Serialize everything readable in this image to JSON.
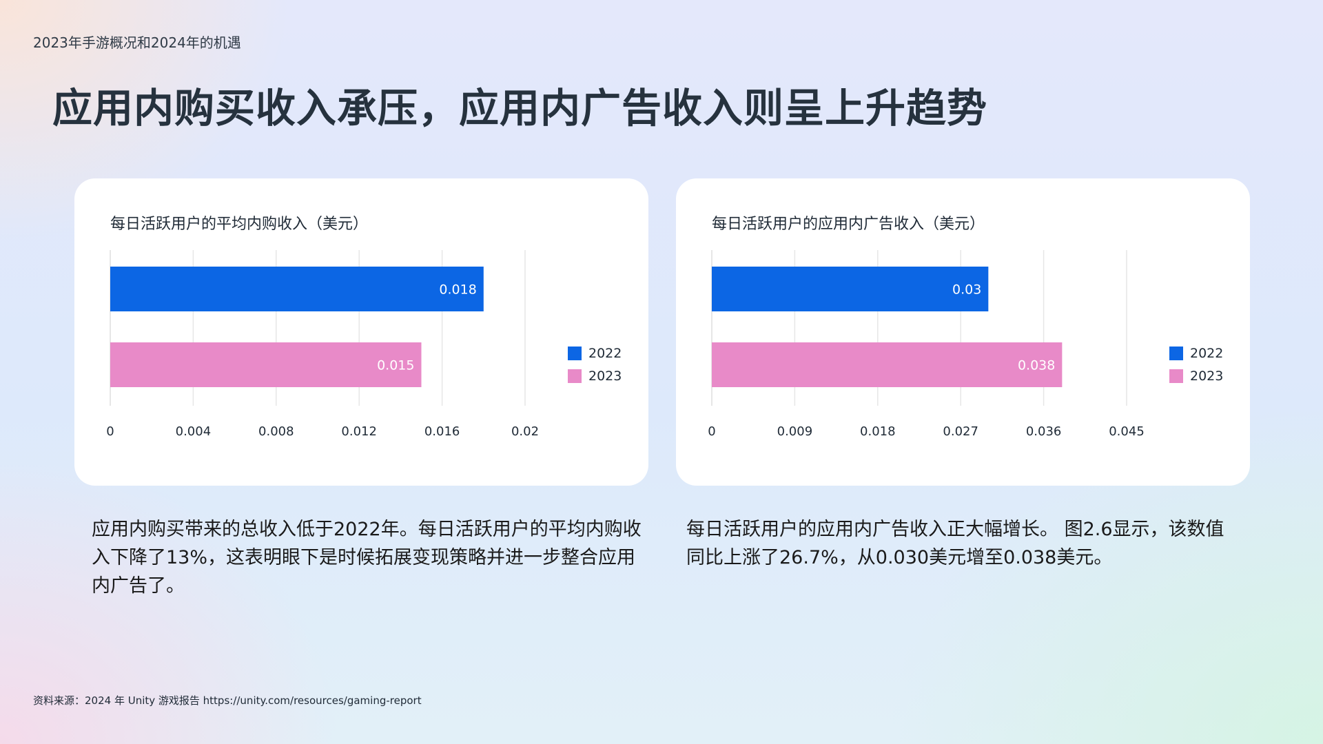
{
  "header": {
    "label": "2023年手游概况和2024年的机遇",
    "title": "应用内购买收入承压，应用内广告收入则呈上升趋势"
  },
  "colors": {
    "series_2022": "#0c66e4",
    "series_2023": "#e88ac8",
    "grid": "#e6e6e6"
  },
  "chart_data": [
    {
      "type": "bar",
      "orientation": "horizontal",
      "title": "每日活跃用户的平均内购收入（美元）",
      "categories": [
        ""
      ],
      "series": [
        {
          "name": "2022",
          "values": [
            0.018
          ],
          "label": "0.018"
        },
        {
          "name": "2023",
          "values": [
            0.015
          ],
          "label": "0.015"
        }
      ],
      "xlim": [
        0,
        0.02
      ],
      "xticks": [
        "0",
        "0.004",
        "0.008",
        "0.012",
        "0.016",
        "0.02"
      ],
      "grid": true,
      "legend": "right"
    },
    {
      "type": "bar",
      "orientation": "horizontal",
      "title": "每日活跃用户的应用内广告收入（美元）",
      "categories": [
        ""
      ],
      "series": [
        {
          "name": "2022",
          "values": [
            0.03
          ],
          "label": "0.03"
        },
        {
          "name": "2023",
          "values": [
            0.038
          ],
          "label": "0.038"
        }
      ],
      "xlim": [
        0,
        0.045
      ],
      "xticks": [
        "0",
        "0.009",
        "0.018",
        "0.027",
        "0.036",
        "0.045"
      ],
      "grid": true,
      "legend": "right"
    }
  ],
  "descriptions": {
    "left": "应用内购买带来的总收入低于2022年。每日活跃用户的平均内购收入下降了13%，这表明眼下是时候拓展变现策略并进一步整合应用内广告了。",
    "right": "每日活跃用户的应用内广告收入正大幅增长。 图2.6显示，该数值同比上涨了26.7%，从0.030美元增至0.038美元。"
  },
  "source": "资料来源：2024 年 Unity 游戏报告 https://unity.com/resources/gaming-report"
}
